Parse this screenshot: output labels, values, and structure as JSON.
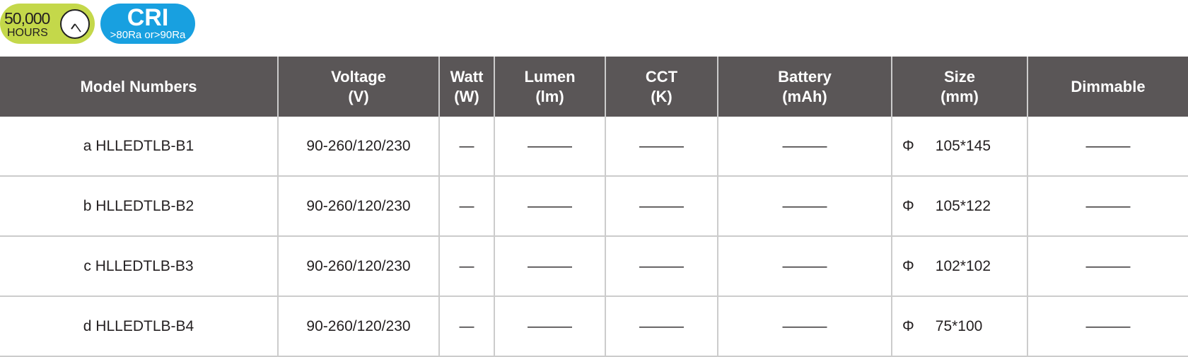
{
  "badges": {
    "hours_value": "50,000",
    "hours_label": "HOURS",
    "cri_title": "CRI",
    "cri_value": ">80Ra or>90Ra"
  },
  "colors": {
    "hours_badge": "#c4d84a",
    "cri_badge": "#18a0e0",
    "header_bg": "#5a5657"
  },
  "table": {
    "headers": [
      [
        "Model Numbers",
        ""
      ],
      [
        "Voltage",
        "(V)"
      ],
      [
        "Watt",
        "(W)"
      ],
      [
        "Lumen",
        "(lm)"
      ],
      [
        "CCT",
        "(K)"
      ],
      [
        "Battery",
        "(mAh)"
      ],
      [
        "Size",
        "(mm)"
      ],
      [
        "Dimmable",
        ""
      ]
    ],
    "rows": [
      {
        "model": "a  HLLEDTLB-B1",
        "voltage": "90-260/120/230",
        "watt": "—",
        "lumen": "———",
        "cct": "———",
        "battery": "———",
        "phi": "Φ",
        "size": "105*145",
        "dimmable": "———"
      },
      {
        "model": "b  HLLEDTLB-B2",
        "voltage": "90-260/120/230",
        "watt": "—",
        "lumen": "———",
        "cct": "———",
        "battery": "———",
        "phi": "Φ",
        "size": "105*122",
        "dimmable": "———"
      },
      {
        "model": "c  HLLEDTLB-B3",
        "voltage": "90-260/120/230",
        "watt": "—",
        "lumen": "———",
        "cct": "———",
        "battery": "———",
        "phi": "Φ",
        "size": "102*102",
        "dimmable": "———"
      },
      {
        "model": "d  HLLEDTLB-B4",
        "voltage": "90-260/120/230",
        "watt": "—",
        "lumen": "———",
        "cct": "———",
        "battery": "———",
        "phi": "Φ",
        "size": "75*100",
        "dimmable": "———"
      }
    ]
  }
}
